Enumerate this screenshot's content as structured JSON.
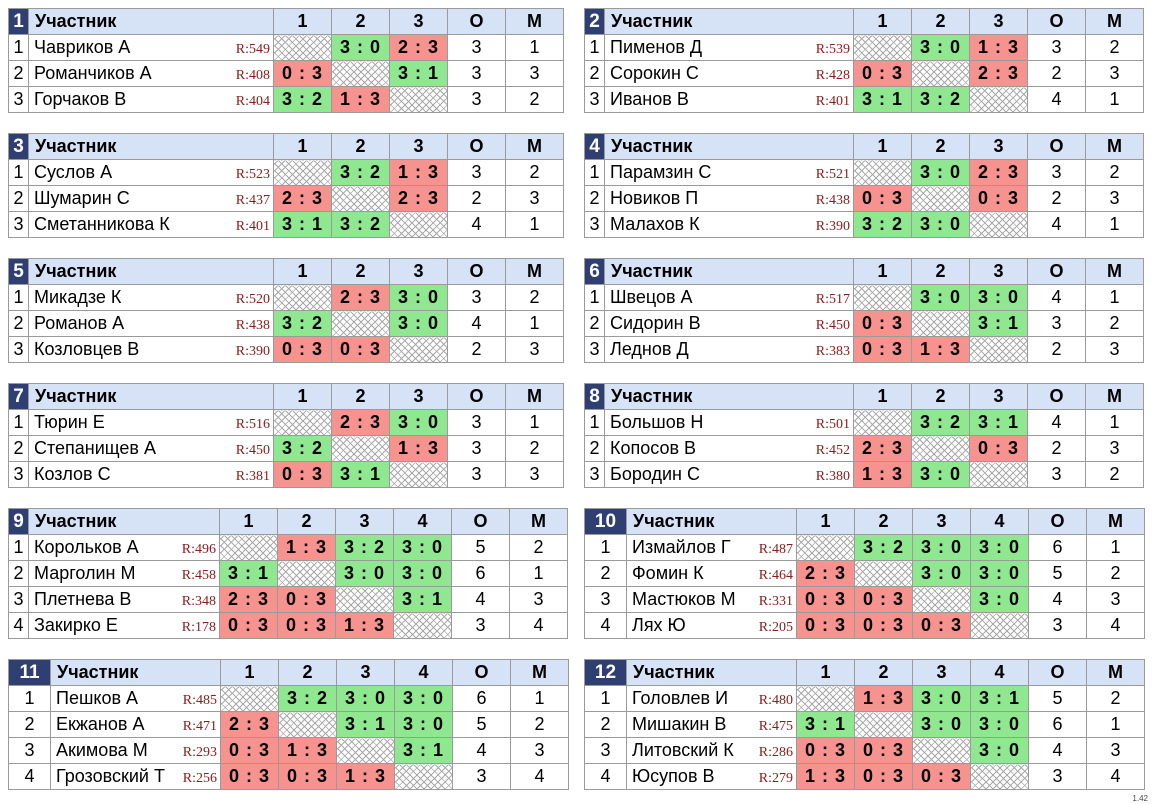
{
  "header": {
    "participant": "Участник",
    "points": "О",
    "place": "М"
  },
  "version": "1.42",
  "groups": [
    {
      "number": "1",
      "cols": [
        "1",
        "2",
        "3"
      ],
      "rows": [
        {
          "pos": "1",
          "name": "Чавриков А",
          "rating": "R:549",
          "results": [
            "",
            "3 : 0",
            "2 : 3"
          ],
          "points": "3",
          "place": "1"
        },
        {
          "pos": "2",
          "name": "Романчиков А",
          "rating": "R:408",
          "results": [
            "0 : 3",
            "",
            "3 : 1"
          ],
          "points": "3",
          "place": "3"
        },
        {
          "pos": "3",
          "name": "Горчаков В",
          "rating": "R:404",
          "results": [
            "3 : 2",
            "1 : 3",
            ""
          ],
          "points": "3",
          "place": "2"
        }
      ]
    },
    {
      "number": "2",
      "cols": [
        "1",
        "2",
        "3"
      ],
      "rows": [
        {
          "pos": "1",
          "name": "Пименов Д",
          "rating": "R:539",
          "results": [
            "",
            "3 : 0",
            "1 : 3"
          ],
          "points": "3",
          "place": "2"
        },
        {
          "pos": "2",
          "name": "Сорокин С",
          "rating": "R:428",
          "results": [
            "0 : 3",
            "",
            "2 : 3"
          ],
          "points": "2",
          "place": "3"
        },
        {
          "pos": "3",
          "name": "Иванов В",
          "rating": "R:401",
          "results": [
            "3 : 1",
            "3 : 2",
            ""
          ],
          "points": "4",
          "place": "1"
        }
      ]
    },
    {
      "number": "3",
      "cols": [
        "1",
        "2",
        "3"
      ],
      "rows": [
        {
          "pos": "1",
          "name": "Суслов А",
          "rating": "R:523",
          "results": [
            "",
            "3 : 2",
            "1 : 3"
          ],
          "points": "3",
          "place": "2"
        },
        {
          "pos": "2",
          "name": "Шумарин С",
          "rating": "R:437",
          "results": [
            "2 : 3",
            "",
            "2 : 3"
          ],
          "points": "2",
          "place": "3"
        },
        {
          "pos": "3",
          "name": "Сметанникова К",
          "rating": "R:401",
          "results": [
            "3 : 1",
            "3 : 2",
            ""
          ],
          "points": "4",
          "place": "1"
        }
      ]
    },
    {
      "number": "4",
      "cols": [
        "1",
        "2",
        "3"
      ],
      "rows": [
        {
          "pos": "1",
          "name": "Парамзин С",
          "rating": "R:521",
          "results": [
            "",
            "3 : 0",
            "2 : 3"
          ],
          "points": "3",
          "place": "2"
        },
        {
          "pos": "2",
          "name": "Новиков П",
          "rating": "R:438",
          "results": [
            "0 : 3",
            "",
            "0 : 3"
          ],
          "points": "2",
          "place": "3"
        },
        {
          "pos": "3",
          "name": "Малахов К",
          "rating": "R:390",
          "results": [
            "3 : 2",
            "3 : 0",
            ""
          ],
          "points": "4",
          "place": "1"
        }
      ]
    },
    {
      "number": "5",
      "cols": [
        "1",
        "2",
        "3"
      ],
      "rows": [
        {
          "pos": "1",
          "name": "Микадзе К",
          "rating": "R:520",
          "results": [
            "",
            "2 : 3",
            "3 : 0"
          ],
          "points": "3",
          "place": "2"
        },
        {
          "pos": "2",
          "name": "Романов А",
          "rating": "R:438",
          "results": [
            "3 : 2",
            "",
            "3 : 0"
          ],
          "points": "4",
          "place": "1"
        },
        {
          "pos": "3",
          "name": "Козловцев В",
          "rating": "R:390",
          "results": [
            "0 : 3",
            "0 : 3",
            ""
          ],
          "points": "2",
          "place": "3"
        }
      ]
    },
    {
      "number": "6",
      "cols": [
        "1",
        "2",
        "3"
      ],
      "rows": [
        {
          "pos": "1",
          "name": "Швецов А",
          "rating": "R:517",
          "results": [
            "",
            "3 : 0",
            "3 : 0"
          ],
          "points": "4",
          "place": "1"
        },
        {
          "pos": "2",
          "name": "Сидорин В",
          "rating": "R:450",
          "results": [
            "0 : 3",
            "",
            "3 : 1"
          ],
          "points": "3",
          "place": "2"
        },
        {
          "pos": "3",
          "name": "Леднов Д",
          "rating": "R:383",
          "results": [
            "0 : 3",
            "1 : 3",
            ""
          ],
          "points": "2",
          "place": "3"
        }
      ]
    },
    {
      "number": "7",
      "cols": [
        "1",
        "2",
        "3"
      ],
      "rows": [
        {
          "pos": "1",
          "name": "Тюрин Е",
          "rating": "R:516",
          "results": [
            "",
            "2 : 3",
            "3 : 0"
          ],
          "points": "3",
          "place": "1"
        },
        {
          "pos": "2",
          "name": "Степанищев А",
          "rating": "R:450",
          "results": [
            "3 : 2",
            "",
            "1 : 3"
          ],
          "points": "3",
          "place": "2"
        },
        {
          "pos": "3",
          "name": "Козлов С",
          "rating": "R:381",
          "results": [
            "0 : 3",
            "3 : 1",
            ""
          ],
          "points": "3",
          "place": "3"
        }
      ]
    },
    {
      "number": "8",
      "cols": [
        "1",
        "2",
        "3"
      ],
      "rows": [
        {
          "pos": "1",
          "name": "Большов Н",
          "rating": "R:501",
          "results": [
            "",
            "3 : 2",
            "3 : 1"
          ],
          "points": "4",
          "place": "1"
        },
        {
          "pos": "2",
          "name": "Копосов В",
          "rating": "R:452",
          "results": [
            "2 : 3",
            "",
            "0 : 3"
          ],
          "points": "2",
          "place": "3"
        },
        {
          "pos": "3",
          "name": "Бородин С",
          "rating": "R:380",
          "results": [
            "1 : 3",
            "3 : 0",
            ""
          ],
          "points": "3",
          "place": "2"
        }
      ]
    },
    {
      "number": "9",
      "cols": [
        "1",
        "2",
        "3",
        "4"
      ],
      "rows": [
        {
          "pos": "1",
          "name": "Корольков А",
          "rating": "R:496",
          "results": [
            "",
            "1 : 3",
            "3 : 2",
            "3 : 0"
          ],
          "points": "5",
          "place": "2"
        },
        {
          "pos": "2",
          "name": "Марголин М",
          "rating": "R:458",
          "results": [
            "3 : 1",
            "",
            "3 : 0",
            "3 : 0"
          ],
          "points": "6",
          "place": "1"
        },
        {
          "pos": "3",
          "name": "Плетнева В",
          "rating": "R:348",
          "results": [
            "2 : 3",
            "0 : 3",
            "",
            "3 : 1"
          ],
          "points": "4",
          "place": "3"
        },
        {
          "pos": "4",
          "name": "Закирко Е",
          "rating": "R:178",
          "results": [
            "0 : 3",
            "0 : 3",
            "1 : 3",
            ""
          ],
          "points": "3",
          "place": "4"
        }
      ]
    },
    {
      "number": "10",
      "cols": [
        "1",
        "2",
        "3",
        "4"
      ],
      "rows": [
        {
          "pos": "1",
          "name": "Измайлов Г",
          "rating": "R:487",
          "results": [
            "",
            "3 : 2",
            "3 : 0",
            "3 : 0"
          ],
          "points": "6",
          "place": "1"
        },
        {
          "pos": "2",
          "name": "Фомин К",
          "rating": "R:464",
          "results": [
            "2 : 3",
            "",
            "3 : 0",
            "3 : 0"
          ],
          "points": "5",
          "place": "2"
        },
        {
          "pos": "3",
          "name": "Мастюков М",
          "rating": "R:331",
          "results": [
            "0 : 3",
            "0 : 3",
            "",
            "3 : 0"
          ],
          "points": "4",
          "place": "3"
        },
        {
          "pos": "4",
          "name": "Лях Ю",
          "rating": "R:205",
          "results": [
            "0 : 3",
            "0 : 3",
            "0 : 3",
            ""
          ],
          "points": "3",
          "place": "4"
        }
      ]
    },
    {
      "number": "11",
      "cols": [
        "1",
        "2",
        "3",
        "4"
      ],
      "rows": [
        {
          "pos": "1",
          "name": "Пешков А",
          "rating": "R:485",
          "results": [
            "",
            "3 : 2",
            "3 : 0",
            "3 : 0"
          ],
          "points": "6",
          "place": "1"
        },
        {
          "pos": "2",
          "name": "Екжанов А",
          "rating": "R:471",
          "results": [
            "2 : 3",
            "",
            "3 : 1",
            "3 : 0"
          ],
          "points": "5",
          "place": "2"
        },
        {
          "pos": "3",
          "name": "Акимова М",
          "rating": "R:293",
          "results": [
            "0 : 3",
            "1 : 3",
            "",
            "3 : 1"
          ],
          "points": "4",
          "place": "3"
        },
        {
          "pos": "4",
          "name": "Грозовский Т",
          "rating": "R:256",
          "results": [
            "0 : 3",
            "0 : 3",
            "1 : 3",
            ""
          ],
          "points": "3",
          "place": "4"
        }
      ]
    },
    {
      "number": "12",
      "cols": [
        "1",
        "2",
        "3",
        "4"
      ],
      "rows": [
        {
          "pos": "1",
          "name": "Головлев И",
          "rating": "R:480",
          "results": [
            "",
            "1 : 3",
            "3 : 0",
            "3 : 1"
          ],
          "points": "5",
          "place": "2"
        },
        {
          "pos": "2",
          "name": "Мишакин В",
          "rating": "R:475",
          "results": [
            "3 : 1",
            "",
            "3 : 0",
            "3 : 0"
          ],
          "points": "6",
          "place": "1"
        },
        {
          "pos": "3",
          "name": "Литовский К",
          "rating": "R:286",
          "results": [
            "0 : 3",
            "0 : 3",
            "",
            "3 : 0"
          ],
          "points": "4",
          "place": "3"
        },
        {
          "pos": "4",
          "name": "Юсупов В",
          "rating": "R:279",
          "results": [
            "1 : 3",
            "0 : 3",
            "0 : 3",
            ""
          ],
          "points": "3",
          "place": "4"
        }
      ]
    }
  ]
}
